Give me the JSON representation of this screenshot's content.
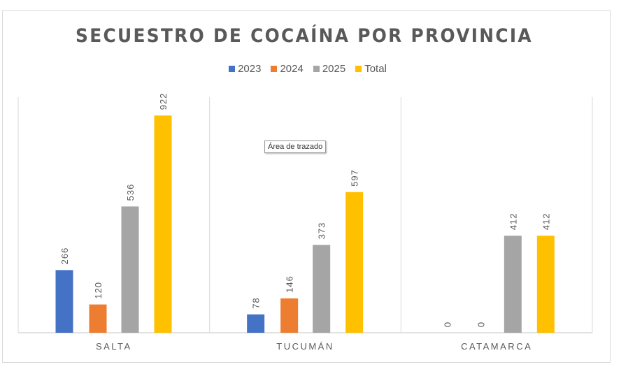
{
  "chart_data": {
    "type": "bar",
    "title": "SECUESTRO DE COCAÍNA POR PROVINCIA",
    "categories": [
      "SALTA",
      "TUCUMÁN",
      "CATAMARCA"
    ],
    "series": [
      {
        "name": "2023",
        "color": "#4472c4",
        "values": [
          266,
          78,
          0
        ]
      },
      {
        "name": "2024",
        "color": "#ed7d31",
        "values": [
          120,
          146,
          0
        ]
      },
      {
        "name": "2025",
        "color": "#a5a5a5",
        "values": [
          536,
          373,
          412
        ]
      },
      {
        "name": "Total",
        "color": "#ffc000",
        "values": [
          922,
          597,
          412
        ]
      }
    ],
    "ylim": [
      0,
      1000
    ],
    "legend": "top",
    "grid": false,
    "data_labels": true
  },
  "tooltip": "Área de trazado"
}
